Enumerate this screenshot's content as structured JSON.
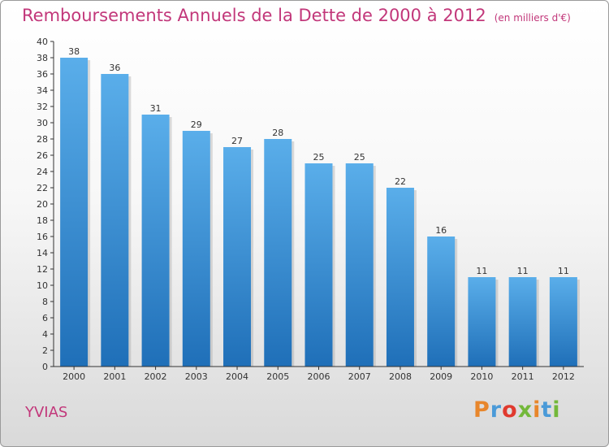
{
  "header": {
    "title": "Remboursements Annuels de la Dette de 2000 à 2012",
    "unit": "(en milliers d'€)"
  },
  "footer": {
    "town": "YVIAS",
    "logo": "Proxiti"
  },
  "colors": {
    "title": "#c2377a",
    "bar_top": "#5aaeea",
    "bar_bottom": "#1f6fb8",
    "axis": "#333333"
  },
  "chart_data": {
    "type": "bar",
    "title": "Remboursements Annuels de la Dette de 2000 à 2012",
    "xlabel": "",
    "ylabel": "",
    "categories": [
      "2000",
      "2001",
      "2002",
      "2003",
      "2004",
      "2005",
      "2006",
      "2007",
      "2008",
      "2009",
      "2010",
      "2011",
      "2012"
    ],
    "values": [
      38,
      36,
      31,
      29,
      27,
      28,
      25,
      25,
      22,
      16,
      11,
      11,
      11
    ],
    "ylim": [
      0,
      40
    ],
    "yticks": [
      0,
      2,
      4,
      6,
      8,
      10,
      12,
      14,
      16,
      18,
      20,
      22,
      24,
      26,
      28,
      30,
      32,
      34,
      36,
      38,
      40
    ],
    "grid": false,
    "legend": "none"
  }
}
